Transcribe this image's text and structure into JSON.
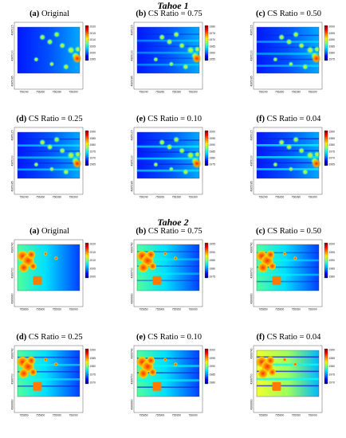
{
  "figure": {
    "sections": [
      {
        "title": "Tahoe 1",
        "panels": [
          {
            "letter": "(a)",
            "label": "Original",
            "cbar": [
              "2020",
              "2015",
              "2010",
              "2005",
              "2000",
              "1995"
            ],
            "xticks": [
              "756240",
              "756260",
              "756280",
              "756300"
            ],
            "yticks": [
              "4365115",
              "4365100",
              "4365085"
            ]
          },
          {
            "letter": "(b)",
            "label": "CS Ratio = 0.75",
            "cbar": [
              "1980",
              "1975",
              "1970",
              "1965",
              "1960",
              "1955"
            ],
            "xticks": [
              "756240",
              "756260",
              "756280",
              "756300"
            ],
            "yticks": [
              "4365115",
              "4365100",
              "4365085"
            ]
          },
          {
            "letter": "(c)",
            "label": "CS Ratio = 0.50",
            "cbar": [
              "2000",
              "1995",
              "1990",
              "1985",
              "1980",
              "1975"
            ],
            "xticks": [
              "756240",
              "756260",
              "756280",
              "756300"
            ],
            "yticks": [
              "4365115",
              "4365100",
              "4365085"
            ]
          },
          {
            "letter": "(d)",
            "label": "CS Ratio = 0.25",
            "cbar": [
              "1990",
              "1985",
              "1980",
              "1975",
              "1970",
              "1965"
            ],
            "xticks": [
              "756240",
              "756260",
              "756280",
              "756300"
            ],
            "yticks": [
              "4365115",
              "4365100",
              "4365085"
            ]
          },
          {
            "letter": "(e)",
            "label": "CS Ratio = 0.10",
            "cbar": [
              "2000",
              "1995",
              "1990",
              "1985",
              "1980",
              "1975"
            ],
            "xticks": [
              "756240",
              "756260",
              "756280",
              "756300"
            ],
            "yticks": [
              "4365115",
              "4365100",
              "4365085"
            ]
          },
          {
            "letter": "(f)",
            "label": "CS Ratio = 0.04",
            "cbar": [
              "1990",
              "1985",
              "1980",
              "1975",
              "1970",
              "1965"
            ],
            "xticks": [
              "756240",
              "756260",
              "756280",
              "756300"
            ],
            "yticks": [
              "4365115",
              "4365100",
              "4365085"
            ]
          }
        ]
      },
      {
        "title": "Tahoe 2",
        "panels": [
          {
            "letter": "(a)",
            "label": "Original",
            "cbar": [
              "2020",
              "2015",
              "2010",
              "2005",
              "2000"
            ],
            "xticks": [
              "755850",
              "755900",
              "755950",
              "756000"
            ],
            "yticks": [
              "4366740",
              "4366700",
              "4366660"
            ]
          },
          {
            "letter": "(b)",
            "label": "CS Ratio = 0.75",
            "cbar": [
              "1995",
              "1990",
              "1985",
              "1980",
              "1975"
            ],
            "xticks": [
              "755850",
              "755900",
              "755950",
              "756000"
            ],
            "yticks": [
              "4366740",
              "4366700",
              "4366660"
            ]
          },
          {
            "letter": "(c)",
            "label": "CS Ratio = 0.50",
            "cbar": [
              "2000",
              "1995",
              "1990",
              "1985",
              "1980"
            ],
            "xticks": [
              "755850",
              "755900",
              "755950",
              "756000"
            ],
            "yticks": [
              "4366740",
              "4366700",
              "4366660"
            ]
          },
          {
            "letter": "(d)",
            "label": "CS Ratio = 0.25",
            "cbar": [
              "1990",
              "1985",
              "1980",
              "1975",
              "1970"
            ],
            "xticks": [
              "755850",
              "755900",
              "755950",
              "756000"
            ],
            "yticks": [
              "4366740",
              "4366700",
              "4366660"
            ]
          },
          {
            "letter": "(e)",
            "label": "CS Ratio = 0.10",
            "cbar": [
              "2000",
              "1995",
              "1990",
              "1985",
              "1980"
            ],
            "xticks": [
              "755850",
              "755900",
              "755950",
              "756000"
            ],
            "yticks": [
              "4366740",
              "4366700",
              "4366660"
            ]
          },
          {
            "letter": "(f)",
            "label": "CS Ratio = 0.04",
            "cbar": [
              "1990",
              "1985",
              "1980",
              "1975",
              "1970"
            ],
            "xticks": [
              "755850",
              "755900",
              "755950",
              "756000"
            ],
            "yticks": [
              "4366740",
              "4366700",
              "4366660"
            ]
          }
        ]
      }
    ],
    "colormap": [
      "#00007f",
      "#0000ff",
      "#0080ff",
      "#00e5ff",
      "#7fff7f",
      "#ffee00",
      "#ff8000",
      "#ff0000",
      "#7f0000"
    ]
  }
}
